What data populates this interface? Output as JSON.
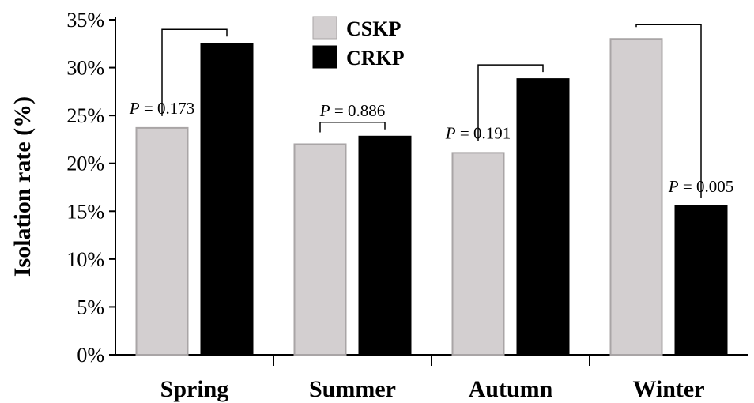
{
  "chart_data": {
    "type": "bar",
    "categories": [
      "Spring",
      "Summer",
      "Autumn",
      "Winter"
    ],
    "series": [
      {
        "name": "CSKP",
        "color": "#d3cfd0",
        "values": [
          23.7,
          22.0,
          21.1,
          33.0
        ]
      },
      {
        "name": "CRKP",
        "color": "#000000",
        "values": [
          32.5,
          22.8,
          28.8,
          15.6
        ]
      }
    ],
    "ylabel": "Isolation rate (%)",
    "xlabel": "",
    "title": "",
    "ylim": [
      0,
      35
    ],
    "yticks": [
      "0%",
      "5%",
      "10%",
      "15%",
      "20%",
      "25%",
      "30%",
      "35%"
    ],
    "legend": {
      "position": "top-center"
    },
    "annotations": [
      {
        "category": "Spring",
        "p_symbol": "P",
        "p_text": " = 0.173"
      },
      {
        "category": "Summer",
        "p_symbol": "P",
        "p_text": " = 0.886"
      },
      {
        "category": "Autumn",
        "p_symbol": "P",
        "p_text": " = 0.191"
      },
      {
        "category": "Winter",
        "p_symbol": "P",
        "p_text": " = 0.005"
      }
    ]
  }
}
